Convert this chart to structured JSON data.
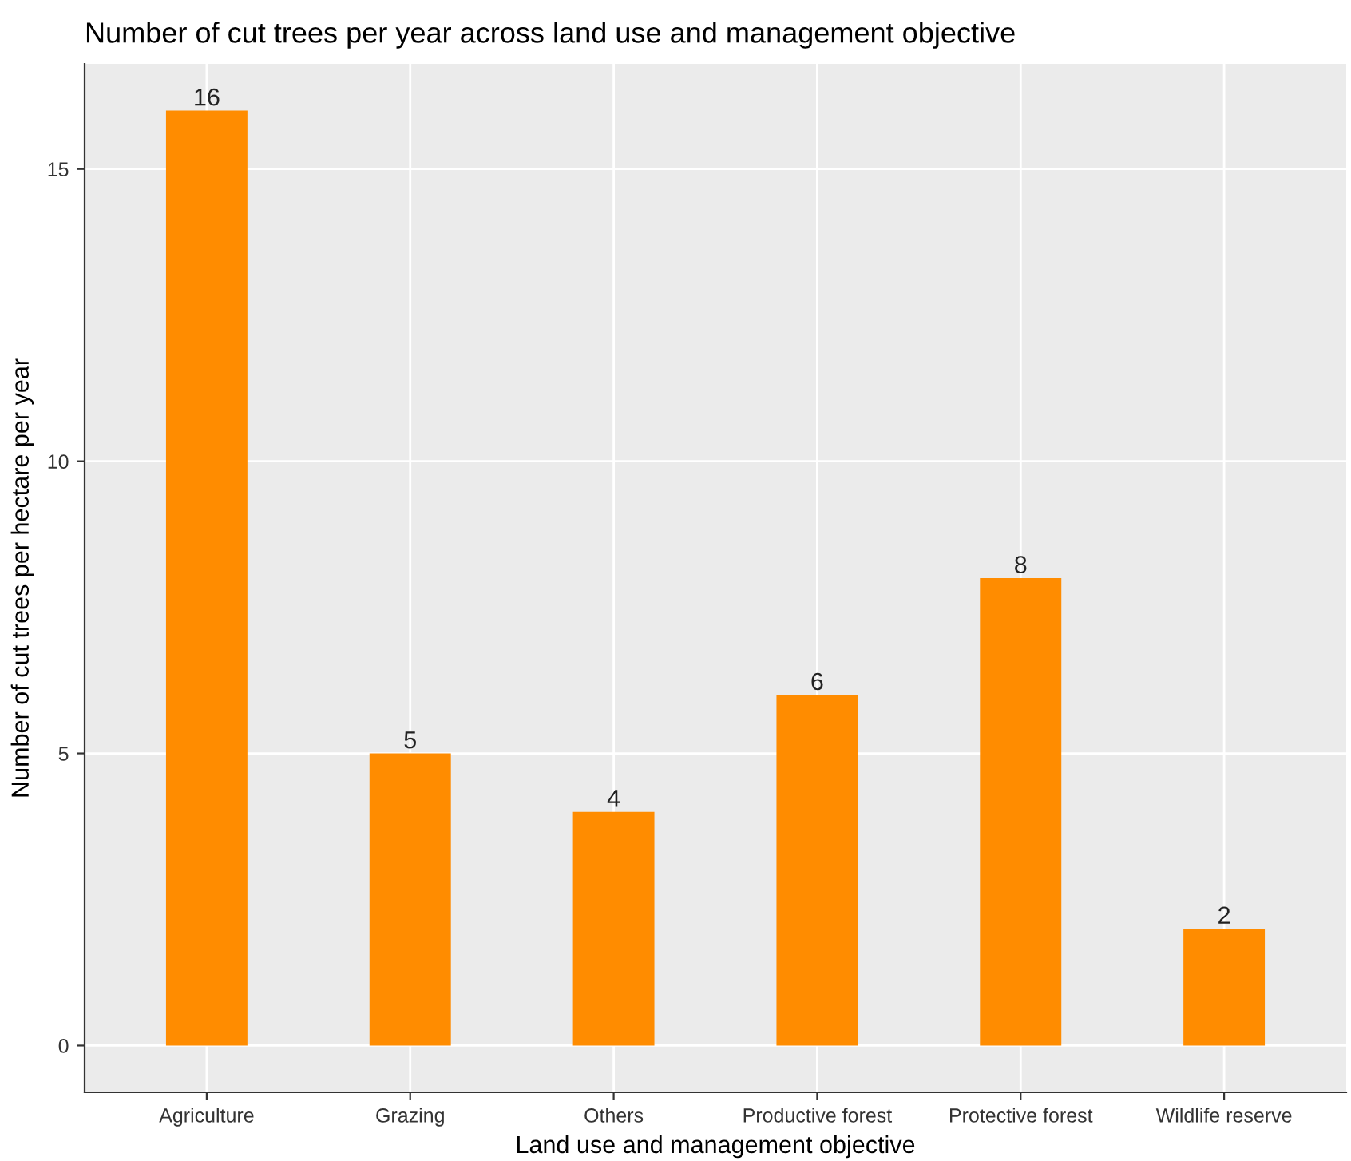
{
  "chart_data": {
    "type": "bar",
    "title": "Number of cut trees per year across land use and management objective",
    "xlabel": "Land use and management objective",
    "ylabel": "Number of cut trees per hectare per year",
    "categories": [
      "Agriculture",
      "Grazing",
      "Others",
      "Productive forest",
      "Protective forest",
      "Wildlife reserve"
    ],
    "values": [
      16,
      5,
      4,
      6,
      8,
      2
    ],
    "color": "#ff8c00",
    "ylim": [
      -0.8,
      16.8
    ],
    "yticks": [
      0,
      5,
      10,
      15
    ],
    "grid": true,
    "data_labels": true
  }
}
